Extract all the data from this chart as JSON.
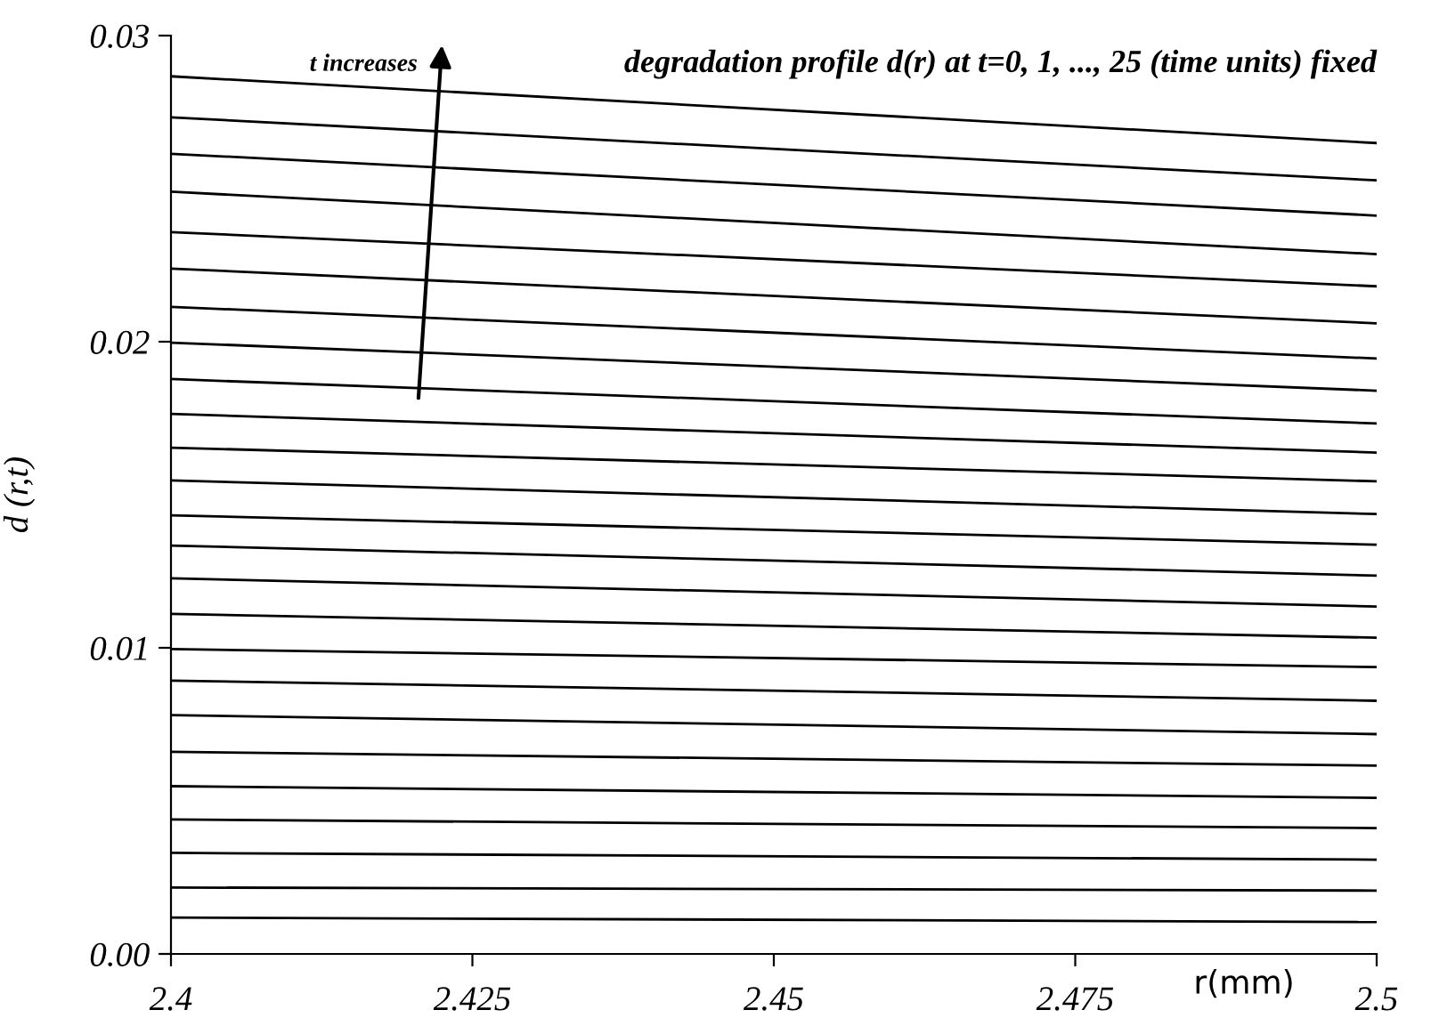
{
  "chart_data": {
    "type": "line",
    "title": "degradation profile d(r) at t=0, 1, ..., 25 (time units) fixed",
    "xlabel": "r(mm)",
    "ylabel": "d (r,t)",
    "annotations": [
      "t increases"
    ],
    "x": [
      2.4,
      2.5
    ],
    "series": [
      {
        "color": "#000000",
        "values": [
          0.00119,
          0.00104
        ]
      },
      {
        "color": "#000000",
        "values": [
          0.00217,
          0.00207
        ]
      },
      {
        "color": "#000000",
        "values": [
          0.0033,
          0.00308
        ]
      },
      {
        "color": "#000000",
        "values": [
          0.00439,
          0.00411
        ]
      },
      {
        "color": "#000000",
        "values": [
          0.00548,
          0.0051
        ]
      },
      {
        "color": "#000000",
        "values": [
          0.0066,
          0.00615
        ]
      },
      {
        "color": "#000000",
        "values": [
          0.0078,
          0.00718
        ]
      },
      {
        "color": "#000000",
        "values": [
          0.00893,
          0.00827
        ]
      },
      {
        "color": "#000000",
        "values": [
          0.00996,
          0.00937
        ]
      },
      {
        "color": "#000000",
        "values": [
          0.01111,
          0.01033
        ]
      },
      {
        "color": "#000000",
        "values": [
          0.01227,
          0.01135
        ]
      },
      {
        "color": "#000000",
        "values": [
          0.01334,
          0.01236
        ]
      },
      {
        "color": "#000000",
        "values": [
          0.01433,
          0.01337
        ]
      },
      {
        "color": "#000000",
        "values": [
          0.01547,
          0.01437
        ]
      },
      {
        "color": "#000000",
        "values": [
          0.01654,
          0.01544
        ]
      },
      {
        "color": "#000000",
        "values": [
          0.01764,
          0.01638
        ]
      },
      {
        "color": "#000000",
        "values": [
          0.01878,
          0.01733
        ]
      },
      {
        "color": "#000000",
        "values": [
          0.01997,
          0.0184
        ]
      },
      {
        "color": "#000000",
        "values": [
          0.02114,
          0.01945
        ]
      },
      {
        "color": "#000000",
        "values": [
          0.02239,
          0.0206
        ]
      },
      {
        "color": "#000000",
        "values": [
          0.02358,
          0.02181
        ]
      },
      {
        "color": "#000000",
        "values": [
          0.0249,
          0.02286
        ]
      },
      {
        "color": "#000000",
        "values": [
          0.02614,
          0.02412
        ]
      },
      {
        "color": "#000000",
        "values": [
          0.02733,
          0.02527
        ]
      },
      {
        "color": "#000000",
        "values": [
          0.02867,
          0.02649
        ]
      }
    ],
    "xlim": [
      2.4,
      2.5
    ],
    "xticks": [
      2.4,
      2.425,
      2.45,
      2.475,
      2.5
    ],
    "ylim": [
      0,
      0.03
    ],
    "yticks": [
      {
        "value": 0,
        "label": "0.00"
      },
      {
        "value": 0.01,
        "label": "0.01"
      },
      {
        "value": 0.02,
        "label": "0.02"
      },
      {
        "value": 0.03,
        "label": "0.03"
      }
    ],
    "grid": false,
    "legend": false,
    "marker": "none",
    "line_style": "solid"
  }
}
